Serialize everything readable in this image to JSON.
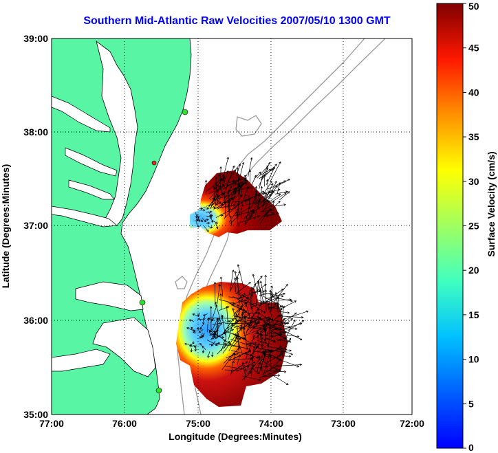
{
  "title": "Southern Mid-Atlantic Raw Velocities 2007/05/10 1300 GMT",
  "x_axis": {
    "label": "Longitude (Degrees:Minutes)",
    "ticks": [
      "77:00",
      "76:00",
      "75:00",
      "74:00",
      "73:00",
      "72:00"
    ]
  },
  "y_axis": {
    "label": "Latitude (Degrees:Minutes)",
    "ticks": [
      "39:00",
      "38:00",
      "37:00",
      "36:00",
      "35:00"
    ]
  },
  "colorbar": {
    "label": "Surface Velocity (cm/s)",
    "ticks": [
      "50",
      "45",
      "40",
      "35",
      "30",
      "25",
      "20",
      "15",
      "10",
      "5",
      "0"
    ],
    "range": [
      0,
      50
    ],
    "colormap": "jet"
  },
  "colors": {
    "land": "#57f5a4",
    "water": "#ffffff",
    "bathymetry": "#9a9a9a",
    "title": "#0000ff",
    "station": "#33dd33",
    "station_alt": "#e83020"
  }
}
